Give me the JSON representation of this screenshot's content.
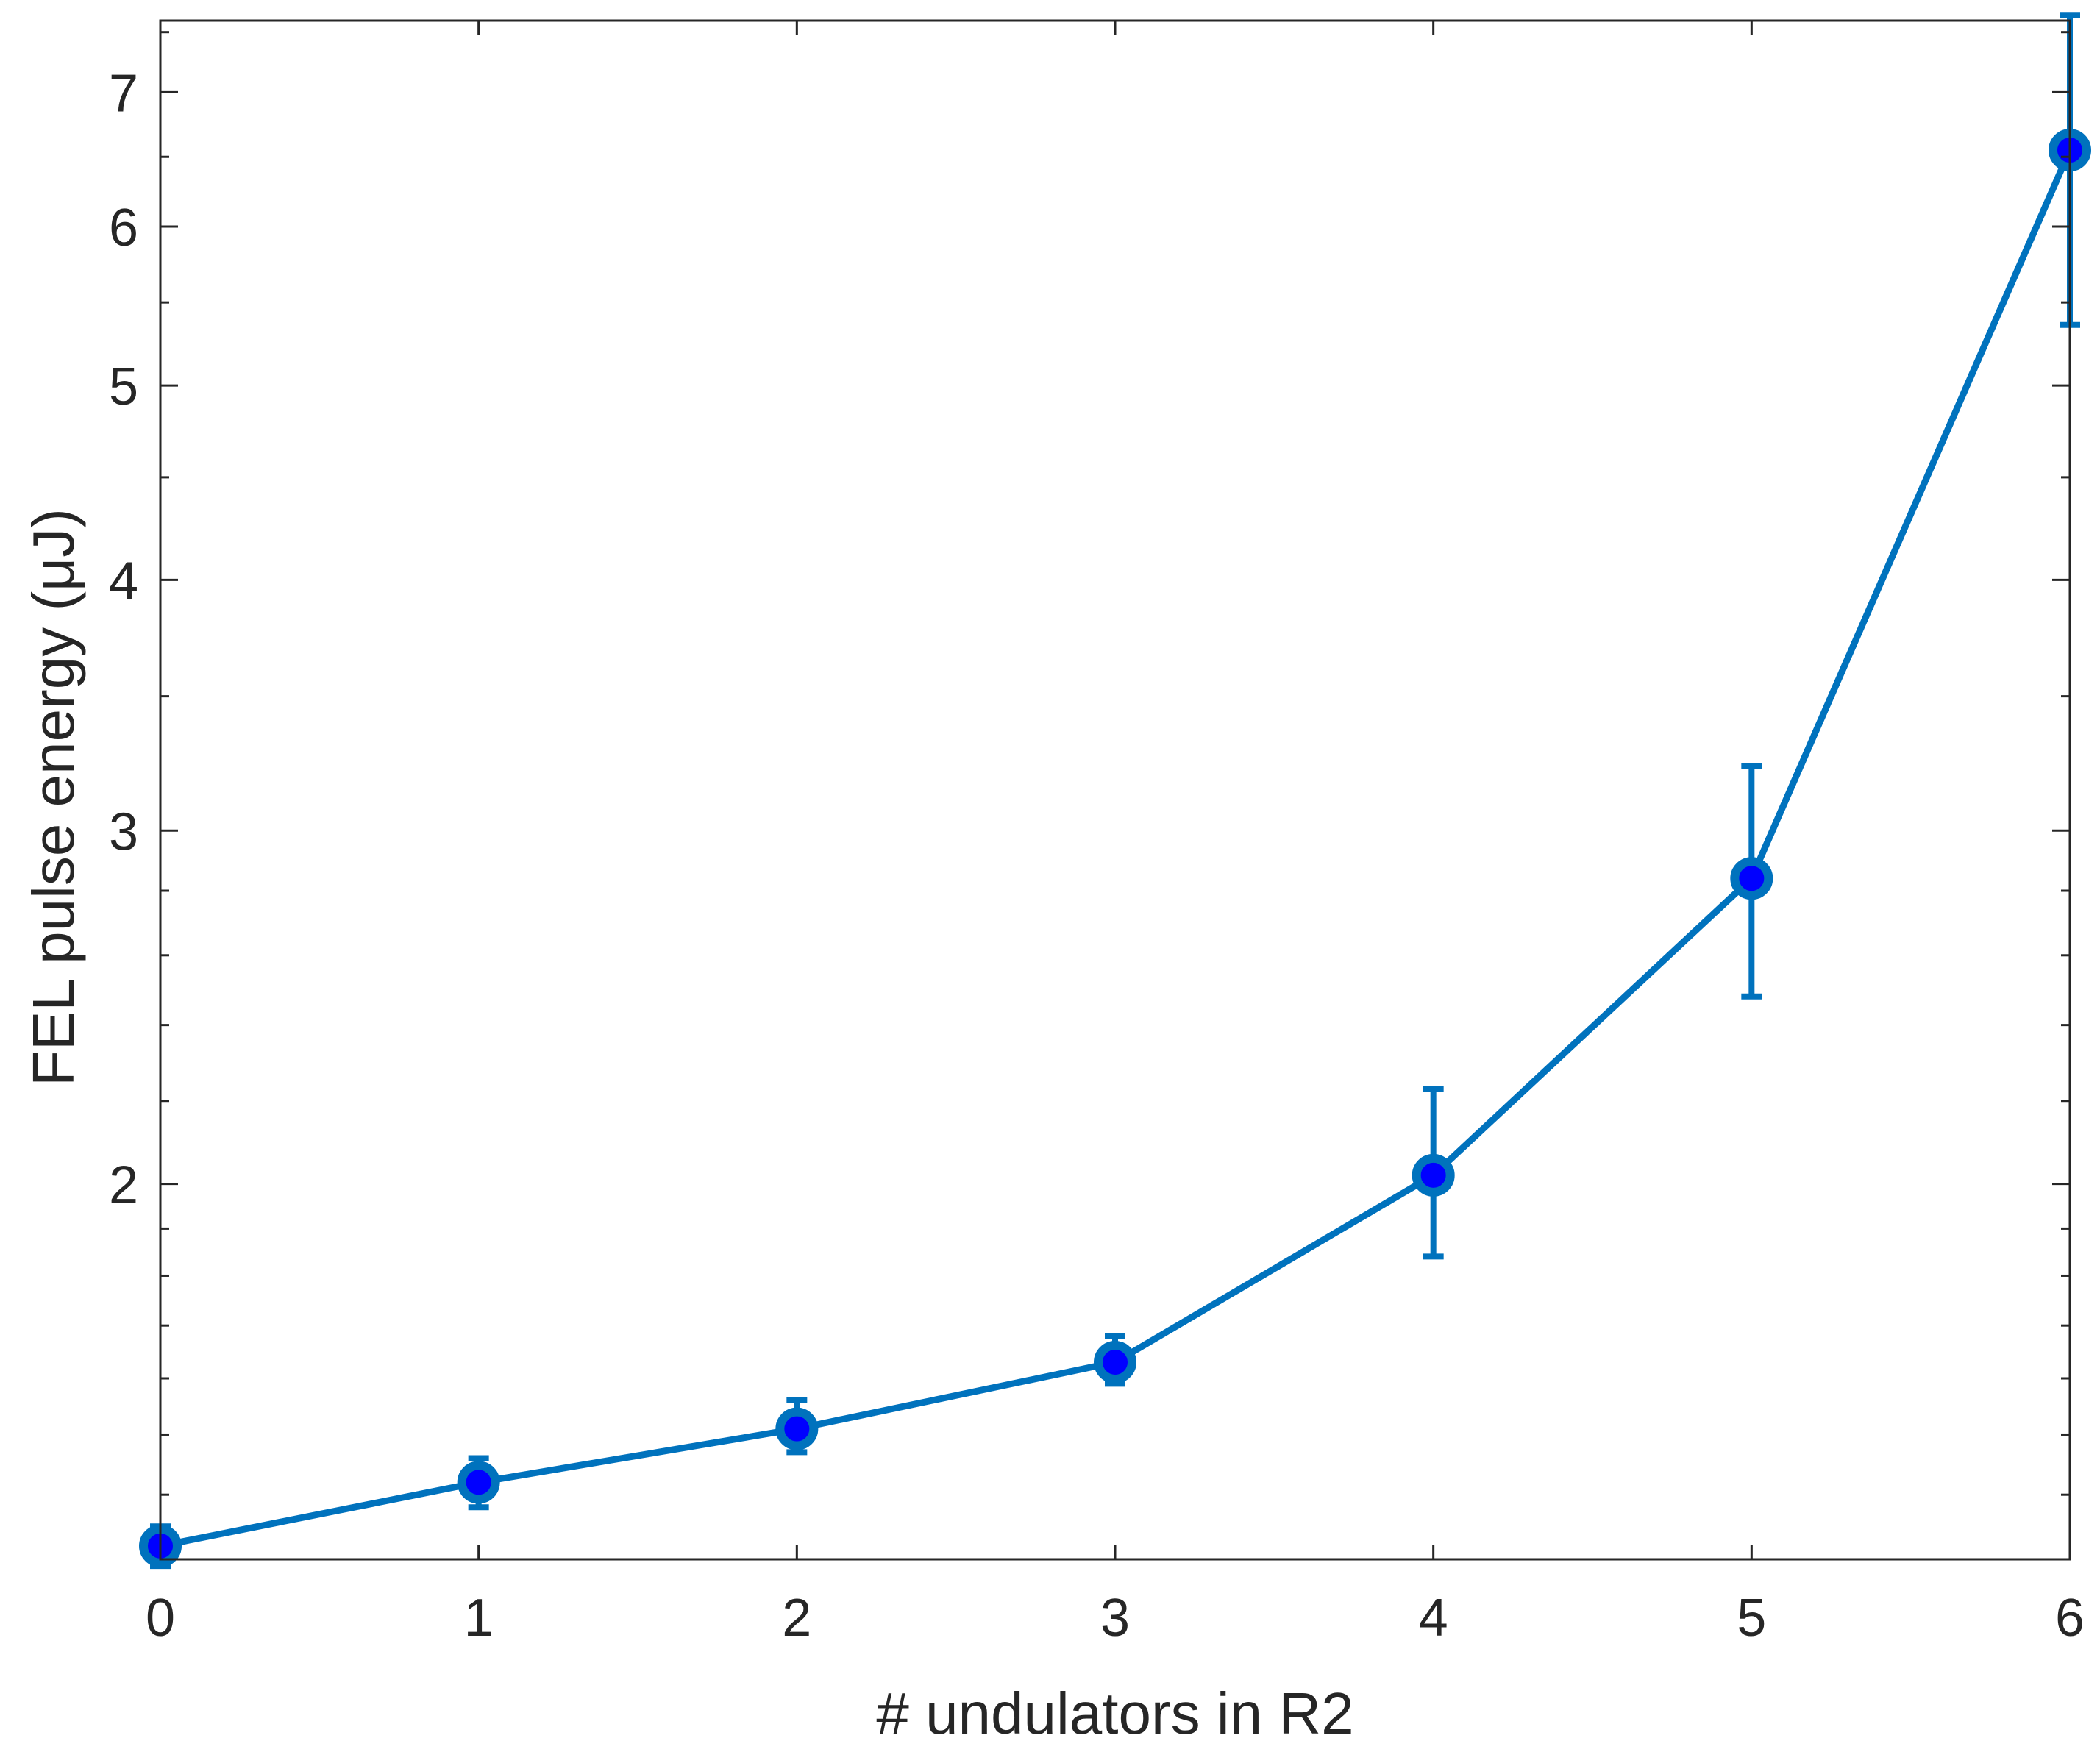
{
  "chart_data": {
    "type": "line",
    "xlabel": "# undulators in R2",
    "ylabel": "FEL pulse energy (μJ)",
    "yscale": "log",
    "xlim": [
      0,
      6
    ],
    "ylim": [
      1.3,
      7.6
    ],
    "x_ticks": [
      "0",
      "1",
      "2",
      "3",
      "4",
      "5",
      "6"
    ],
    "y_ticks": [
      "2",
      "3",
      "4",
      "5",
      "6",
      "7"
    ],
    "grid": false,
    "colors": {
      "line": "#0072bd",
      "marker_fill": "#0000ff",
      "axes": "#262626"
    },
    "series": [
      {
        "x": [
          0,
          1,
          2,
          3,
          4,
          5,
          6
        ],
        "y": [
          1.32,
          1.42,
          1.51,
          1.63,
          2.02,
          2.84,
          6.55
        ],
        "err_low": [
          1.29,
          1.38,
          1.47,
          1.59,
          1.84,
          2.48,
          5.36
        ],
        "err_high": [
          1.35,
          1.46,
          1.56,
          1.68,
          2.23,
          3.23,
          7.65
        ]
      }
    ]
  }
}
